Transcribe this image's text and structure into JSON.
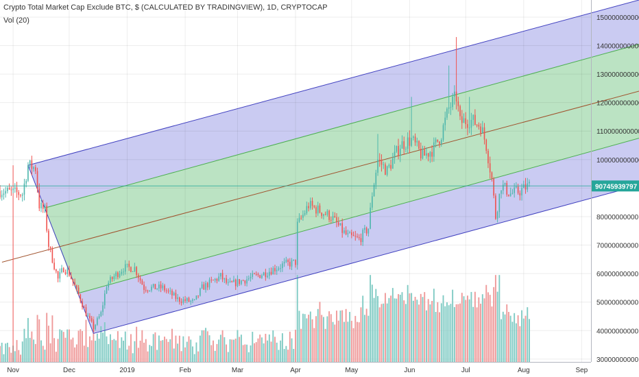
{
  "header": {
    "title": "Crypto Total Market Cap Exclude BTC, $ (CALCULATED BY TRADINGVIEW), 1D, CRYPTOCAP",
    "volume_indicator": "Vol (20)"
  },
  "price_label": "90745939797",
  "colors": {
    "up": "#4db6ac",
    "down": "#ef5350",
    "vol_up": "#80cbc4",
    "vol_down": "#ef9a9a",
    "outer_band": "#9fa0e8",
    "inner_band": "#b6e8b6",
    "channel_line": "#3f3fbf",
    "inner_line": "#4caf50",
    "median_line": "#a0522d",
    "price_line": "#26a69a"
  },
  "chart_data": {
    "type": "candlestick",
    "x_axis": {
      "ticks": [
        "Nov",
        "Dec",
        "2019",
        "Feb",
        "Mar",
        "Apr",
        "May",
        "Jun",
        "Jul",
        "Aug",
        "Sep"
      ],
      "dates": [
        "2018-11-01",
        "2018-12-01",
        "2019-01-01",
        "2019-02-01",
        "2019-03-01",
        "2019-04-01",
        "2019-05-01",
        "2019-06-01",
        "2019-07-01",
        "2019-08-01",
        "2019-09-01"
      ],
      "range": [
        "2018-10-25",
        "2019-09-06"
      ]
    },
    "y_axis": {
      "ticks": [
        30000000000,
        40000000000,
        50000000000,
        60000000000,
        70000000000,
        80000000000,
        90000000000,
        100000000000,
        110000000000,
        120000000000,
        130000000000,
        140000000000,
        150000000000
      ],
      "tick_labels": [
        "30000000000",
        "40000000000",
        "50000000000",
        "60000000000",
        "70000000000",
        "80000000000",
        "90000000000",
        "100000000000",
        "110000000000",
        "120000000000",
        "130000000000",
        "140000000000",
        "150000000000"
      ],
      "range": [
        29000000000,
        156000000000
      ]
    },
    "last_price": 90745939797,
    "price_anchors": [
      [
        "2018-10-25",
        89
      ],
      [
        "2018-11-06",
        88
      ],
      [
        "2018-11-09",
        98
      ],
      [
        "2018-11-13",
        97
      ],
      [
        "2018-11-15",
        84
      ],
      [
        "2018-11-18",
        82
      ],
      [
        "2018-11-20",
        70
      ],
      [
        "2018-11-25",
        58
      ],
      [
        "2018-11-28",
        62
      ],
      [
        "2018-12-01",
        60
      ],
      [
        "2018-12-07",
        51
      ],
      [
        "2018-12-10",
        46
      ],
      [
        "2018-12-14",
        41
      ],
      [
        "2018-12-18",
        46
      ],
      [
        "2018-12-21",
        56
      ],
      [
        "2018-12-25",
        59
      ],
      [
        "2018-12-30",
        62
      ],
      [
        "2019-01-05",
        62
      ],
      [
        "2019-01-10",
        55
      ],
      [
        "2019-01-20",
        55
      ],
      [
        "2019-01-28",
        51
      ],
      [
        "2019-02-06",
        50
      ],
      [
        "2019-02-10",
        55
      ],
      [
        "2019-02-20",
        59
      ],
      [
        "2019-02-24",
        56
      ],
      [
        "2019-03-01",
        57
      ],
      [
        "2019-03-15",
        60
      ],
      [
        "2019-03-25",
        63
      ],
      [
        "2019-04-01",
        64
      ],
      [
        "2019-04-02",
        77
      ],
      [
        "2019-04-08",
        84
      ],
      [
        "2019-04-20",
        80
      ],
      [
        "2019-04-26",
        75
      ],
      [
        "2019-04-29",
        73
      ],
      [
        "2019-05-05",
        72
      ],
      [
        "2019-05-10",
        76
      ],
      [
        "2019-05-12",
        88
      ],
      [
        "2019-05-15",
        100
      ],
      [
        "2019-05-20",
        96
      ],
      [
        "2019-05-27",
        105
      ],
      [
        "2019-06-02",
        107
      ],
      [
        "2019-06-08",
        101
      ],
      [
        "2019-06-14",
        104
      ],
      [
        "2019-06-18",
        109
      ],
      [
        "2019-06-22",
        118
      ],
      [
        "2019-06-26",
        122
      ],
      [
        "2019-06-28",
        113
      ],
      [
        "2019-07-03",
        114
      ],
      [
        "2019-07-09",
        112
      ],
      [
        "2019-07-12",
        105
      ],
      [
        "2019-07-15",
        93
      ],
      [
        "2019-07-17",
        80
      ],
      [
        "2019-07-20",
        91
      ],
      [
        "2019-07-25",
        88
      ],
      [
        "2019-07-30",
        89
      ],
      [
        "2019-08-04",
        91
      ]
    ],
    "candles_period": [
      "2018-10-25",
      "2019-08-04"
    ],
    "volume_range": [
      29000000000,
      61000000000
    ],
    "pitchfork": {
      "anchors": [
        {
          "date": "2018-11-09",
          "price": 98000000000
        },
        {
          "date": "2018-12-14",
          "price": 39000000000
        },
        {
          "date": "2019-06-26",
          "price": 143000000000
        }
      ],
      "median_start": {
        "date": "2018-11-09",
        "price": 64000000000
      },
      "channel_at_end": {
        "upper": 156000000000,
        "inner_upper": 140500000000,
        "median": 124000000000,
        "inner_lower": 107500000000,
        "lower": 91000000000
      },
      "channel_at_start": {
        "upper": 98000000000,
        "inner_upper": 83000000000,
        "inner_lower": 53000000000,
        "lower": 39000000000
      }
    }
  }
}
